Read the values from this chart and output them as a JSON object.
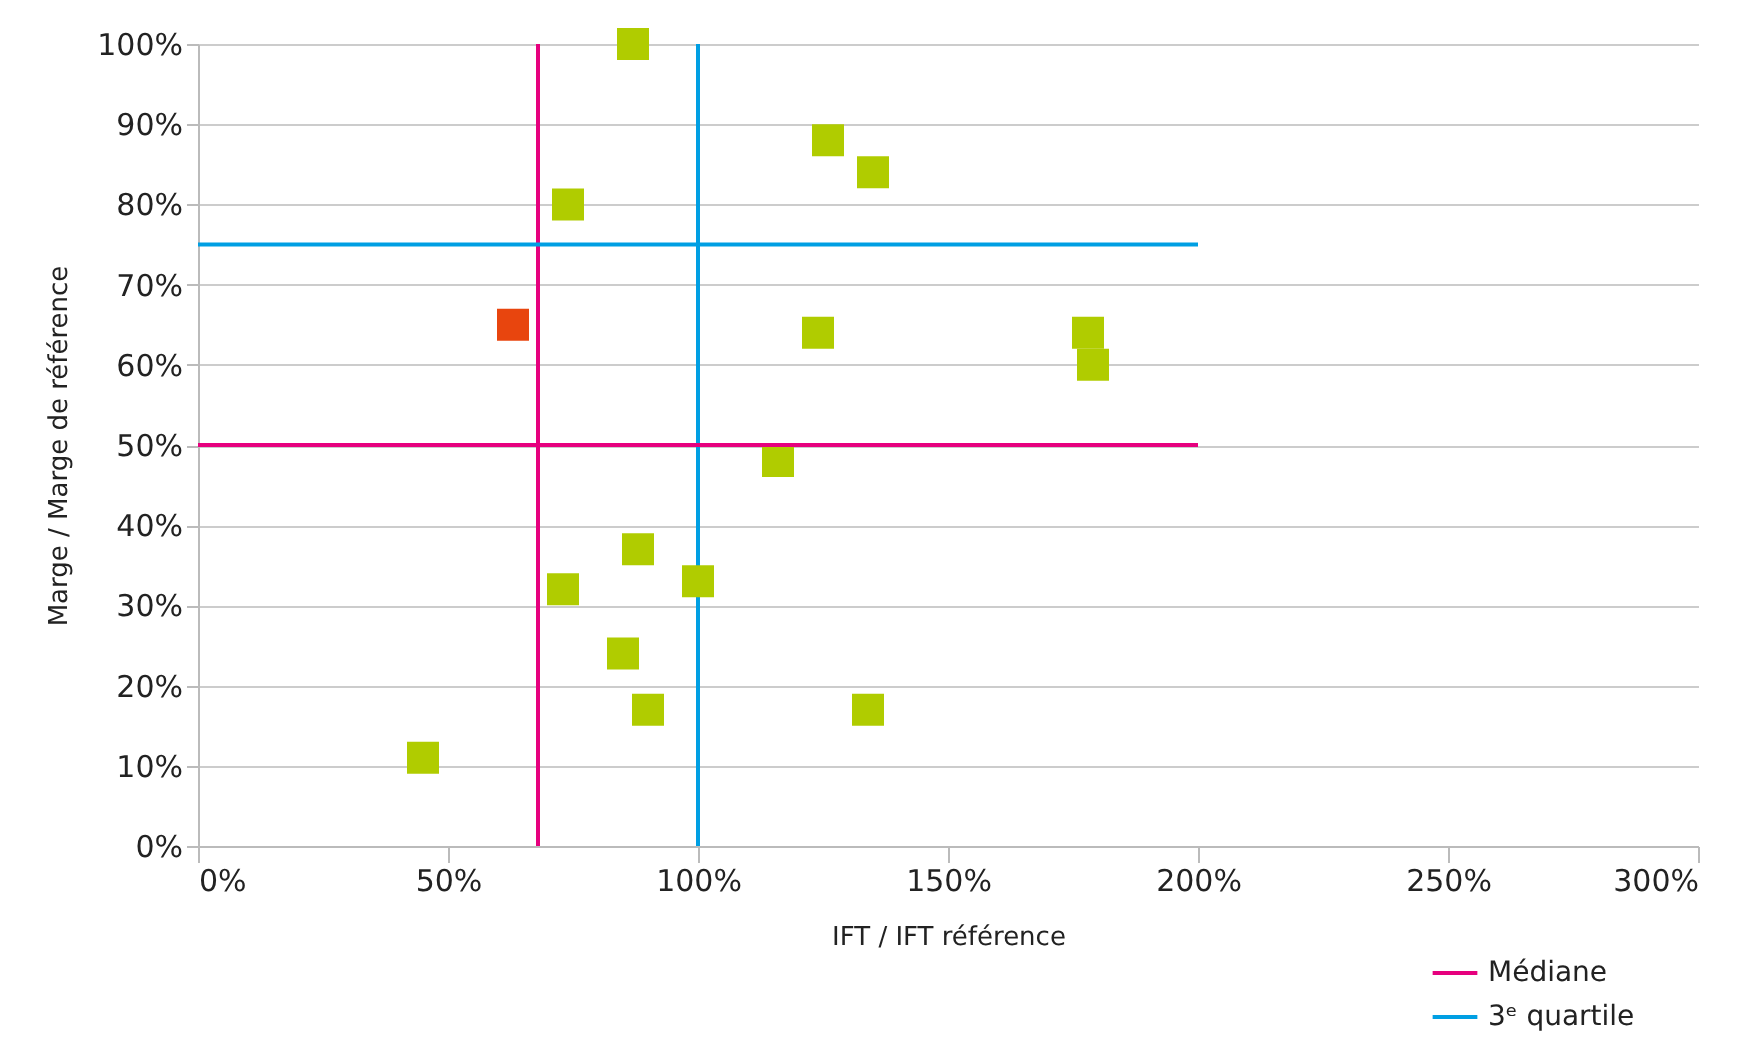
{
  "chart_data": {
    "type": "scatter",
    "xlabel": "IFT / IFT référence",
    "ylabel": "Marge / Marge de référence",
    "xlim": [
      0,
      300
    ],
    "ylim": [
      0,
      100
    ],
    "xticks": [
      {
        "value": 0,
        "label": "0%"
      },
      {
        "value": 50,
        "label": "50%"
      },
      {
        "value": 100,
        "label": "100%"
      },
      {
        "value": 150,
        "label": "150%"
      },
      {
        "value": 200,
        "label": "200%"
      },
      {
        "value": 250,
        "label": "250%"
      },
      {
        "value": 300,
        "label": "300%"
      }
    ],
    "yticks": [
      {
        "value": 0,
        "label": "0%"
      },
      {
        "value": 10,
        "label": "10%"
      },
      {
        "value": 20,
        "label": "20%"
      },
      {
        "value": 30,
        "label": "30%"
      },
      {
        "value": 40,
        "label": "40%"
      },
      {
        "value": 50,
        "label": "50%"
      },
      {
        "value": 60,
        "label": "60%"
      },
      {
        "value": 70,
        "label": "70%"
      },
      {
        "value": 80,
        "label": "80%"
      },
      {
        "value": 90,
        "label": "90%"
      },
      {
        "value": 100,
        "label": "100%"
      }
    ],
    "grid": "y",
    "legend": "bottom right",
    "series": [
      {
        "marker": "square",
        "color": "#b0cc00",
        "x": [
          87,
          126,
          135,
          74,
          124,
          178,
          179,
          116,
          88,
          100,
          73,
          85,
          90,
          134,
          45
        ],
        "values": [
          100,
          88,
          84,
          80,
          64,
          64,
          60,
          48,
          37,
          33,
          32,
          24,
          17,
          17,
          11
        ]
      },
      {
        "marker": "square",
        "color": "#e8450e",
        "x": [
          63
        ],
        "values": [
          65
        ]
      },
      {
        "name": "Médiane",
        "type": "line",
        "marker": "none",
        "color": "#e6007e",
        "x": [
          0,
          200
        ],
        "values": [
          50,
          50
        ]
      },
      {
        "type": "line",
        "marker": "none",
        "color": "#e6007e",
        "x": [
          68,
          68
        ],
        "values": [
          0,
          100
        ]
      },
      {
        "name": "3ᵉ quartile",
        "type": "line",
        "marker": "none",
        "color": "#009fe3",
        "x": [
          0,
          200
        ],
        "values": [
          75,
          75
        ]
      },
      {
        "type": "line",
        "marker": "none",
        "color": "#009fe3",
        "x": [
          100,
          100
        ],
        "values": [
          0,
          100
        ]
      }
    ]
  }
}
